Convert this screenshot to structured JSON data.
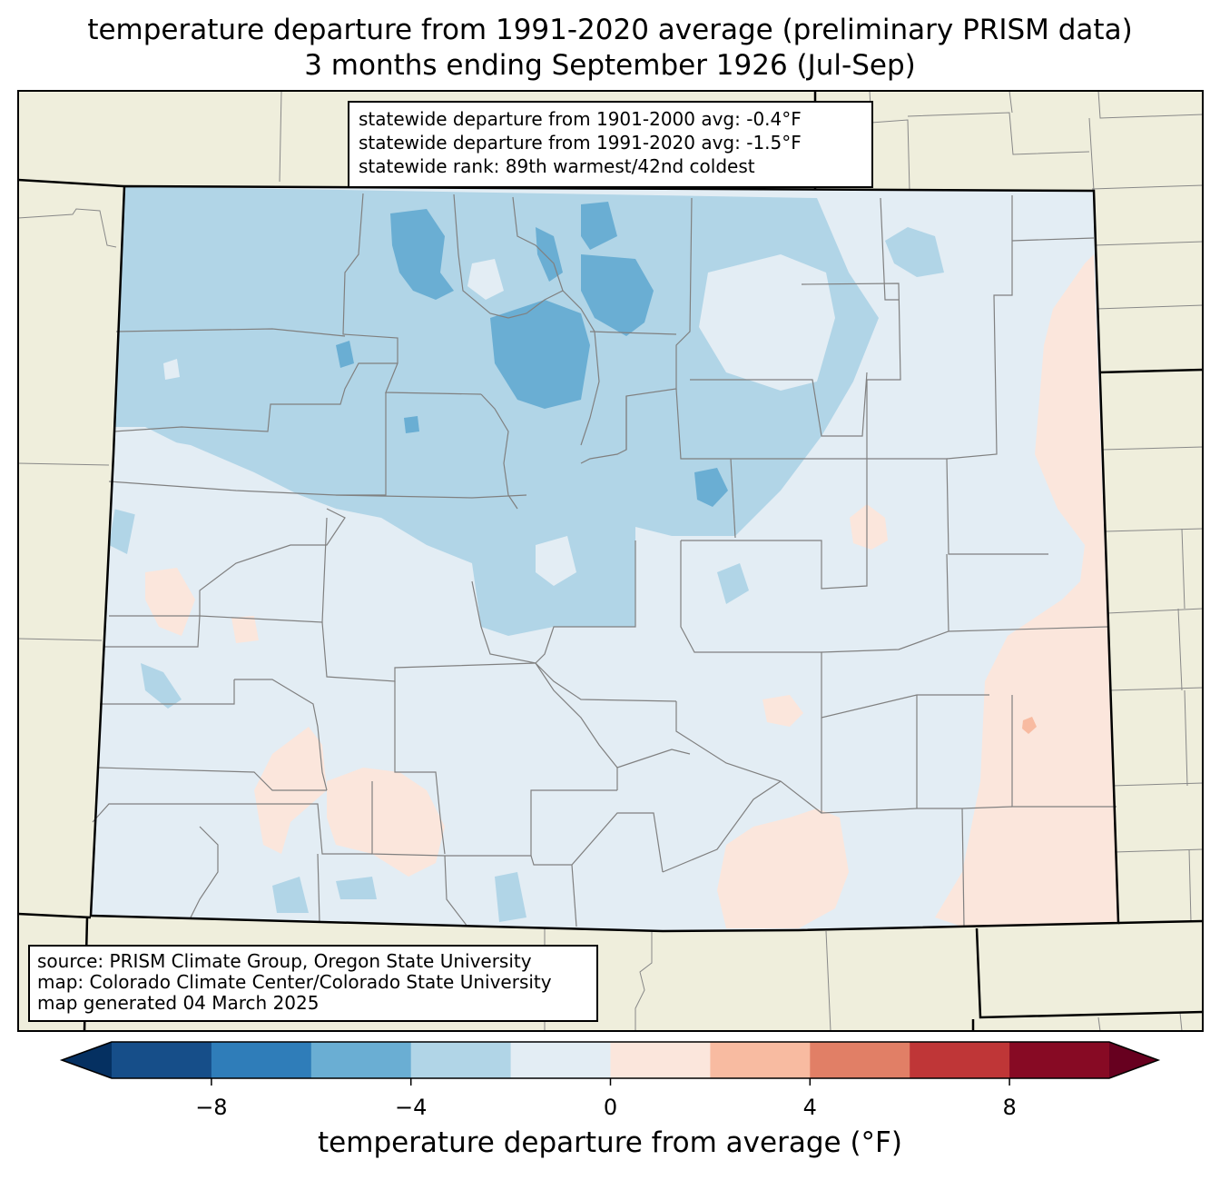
{
  "title": {
    "line1": "temperature departure from 1991-2020 average (preliminary PRISM data)",
    "line2": "3 months ending September 1926 (Jul-Sep)"
  },
  "stats": {
    "line1": "statewide departure from 1901-2000 avg: -0.4°F",
    "line2": "statewide departure from 1991-2020 avg: -1.5°F",
    "line3": "statewide rank: 89th warmest/42nd coldest"
  },
  "source": {
    "line1": "source: PRISM Climate Group, Oregon State University",
    "line2": "map: Colorado Climate Center/Colorado State University",
    "line3": "map generated 04 March 2025"
  },
  "colorbar": {
    "label": "temperature departure from average (°F)",
    "ticks": [
      "−8",
      "−4",
      "0",
      "4",
      "8"
    ],
    "tick_values": [
      -8,
      -4,
      0,
      4,
      8
    ],
    "bounds": [
      -10,
      10
    ],
    "step": 2,
    "colors": [
      "#053061",
      "#164e89",
      "#2f7db9",
      "#6aaed3",
      "#b1d5e7",
      "#e3edf4",
      "#fbe6dc",
      "#f8bba1",
      "#e17f66",
      "#bf3637",
      "#870a24",
      "#67001f"
    ]
  },
  "colors": {
    "land_outside": "#efeedc",
    "state_fill": "#e3edf4",
    "cool_light": "#b1d5e7",
    "cool_mid": "#6aaed3",
    "warm_light": "#fbe6dc",
    "warm_mid": "#f8bba1"
  }
}
